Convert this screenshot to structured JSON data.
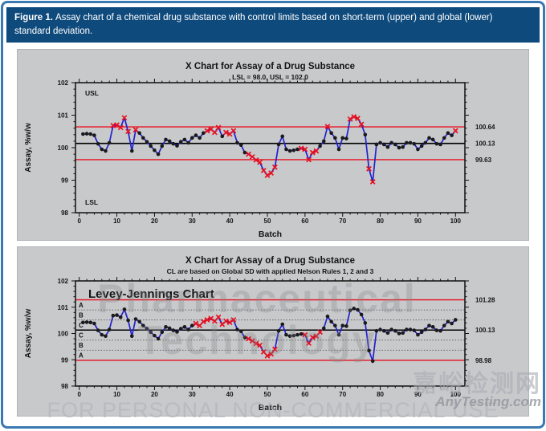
{
  "figure_caption": {
    "label": "Figure 1.",
    "text": "Assay chart of a chemical drug substance with control limits based on short-term (upper) and global (lower) standard deviation."
  },
  "colors": {
    "header_bg": "#0f4a7c",
    "frame_blue": "#3b79b3",
    "panel_bg": "#c8c9cb",
    "line_blue": "#2222cc",
    "point_black": "#1a1a1a",
    "flag_red": "#e8101f",
    "limit_red": "#e8101f",
    "center_black": "#000000"
  },
  "watermarks": {
    "pharma_line1": "Pharmaceutical",
    "pharma_line2": "Technology",
    "footer": "FOR PERSONAL NON-COMMERCIAL USE",
    "site_cn": "嘉峪检测网",
    "site_en": "AnyTesting.com"
  },
  "chart_data": [
    {
      "type": "line",
      "title": "X Chart for Assay of a Drug Substance",
      "subtitle": "LSL = 98.0, USL = 102.0",
      "xlabel": "Batch",
      "ylabel": "Assay, %w/w",
      "xlim": [
        -1,
        102.5
      ],
      "ylim": [
        98,
        102
      ],
      "xticks": [
        0,
        10,
        20,
        30,
        40,
        50,
        60,
        70,
        80,
        90,
        100
      ],
      "yticks": [
        98,
        99,
        100,
        101,
        102
      ],
      "center_line": 100.13,
      "ucl": 100.64,
      "lcl": 99.63,
      "right_labels": [
        "100.64",
        "100.13",
        "99.63"
      ],
      "spec_labels": {
        "upper": "USL",
        "lower": "LSL"
      },
      "batches": [
        1,
        2,
        3,
        4,
        5,
        6,
        7,
        8,
        9,
        10,
        11,
        12,
        13,
        14,
        15,
        16,
        17,
        18,
        19,
        20,
        21,
        22,
        23,
        24,
        25,
        26,
        27,
        28,
        29,
        30,
        31,
        32,
        33,
        34,
        35,
        36,
        37,
        38,
        39,
        40,
        41,
        42,
        43,
        44,
        45,
        46,
        47,
        48,
        49,
        50,
        51,
        52,
        53,
        54,
        55,
        56,
        57,
        58,
        59,
        60,
        61,
        62,
        63,
        64,
        65,
        66,
        67,
        68,
        69,
        70,
        71,
        72,
        73,
        74,
        75,
        76,
        77,
        78,
        79,
        80,
        81,
        82,
        83,
        84,
        85,
        86,
        87,
        88,
        89,
        90,
        91,
        92,
        93,
        94,
        95,
        96,
        97,
        98,
        99,
        100
      ],
      "values": [
        100.42,
        100.43,
        100.42,
        100.38,
        100.12,
        99.95,
        99.9,
        100.15,
        100.68,
        100.7,
        100.62,
        100.92,
        100.5,
        99.9,
        100.55,
        100.45,
        100.3,
        100.18,
        100.05,
        99.92,
        99.8,
        100.05,
        100.25,
        100.2,
        100.12,
        100.06,
        100.18,
        100.25,
        100.15,
        100.3,
        100.38,
        100.3,
        100.45,
        100.52,
        100.57,
        100.47,
        100.62,
        100.35,
        100.47,
        100.42,
        100.52,
        100.15,
        100.08,
        99.85,
        99.8,
        99.72,
        99.62,
        99.55,
        99.3,
        99.15,
        99.22,
        99.4,
        100.1,
        100.35,
        99.95,
        99.9,
        99.92,
        99.95,
        99.98,
        99.95,
        99.63,
        99.85,
        99.9,
        100.05,
        100.2,
        100.65,
        100.45,
        100.3,
        99.95,
        100.3,
        100.28,
        100.88,
        100.95,
        100.9,
        100.72,
        100.4,
        99.35,
        98.95,
        100.1,
        100.15,
        100.1,
        100.02,
        100.15,
        100.1,
        100.0,
        100.02,
        100.15,
        100.15,
        100.12,
        99.95,
        100.05,
        100.15,
        100.3,
        100.25,
        100.12,
        100.1,
        100.3,
        100.45,
        100.38,
        100.52
      ],
      "flagged_batches": [
        9,
        10,
        11,
        12,
        13,
        15,
        34,
        35,
        36,
        37,
        39,
        40,
        41,
        45,
        46,
        47,
        48,
        49,
        50,
        51,
        52,
        59,
        60,
        61,
        62,
        63,
        66,
        72,
        73,
        74,
        75,
        77,
        78,
        100
      ]
    },
    {
      "type": "line",
      "title": "X Chart for Assay of a Drug Substance",
      "subtitle": "CL are based on Global SD with applied Nelson Rules 1, 2 and 3",
      "annotation": "Levey-Jennings Chart",
      "xlabel": "Batch",
      "ylabel": "Assay, %w/w",
      "xlim": [
        -1,
        102.5
      ],
      "ylim": [
        98,
        102
      ],
      "xticks": [
        0,
        10,
        20,
        30,
        40,
        50,
        60,
        70,
        80,
        90,
        100
      ],
      "yticks": [
        98,
        99,
        100,
        101,
        102
      ],
      "center_line": 100.13,
      "ucl": 101.28,
      "lcl": 98.98,
      "zone_lines": [
        100.896,
        100.513,
        99.747,
        99.364
      ],
      "zone_labels": [
        "A",
        "B",
        "C",
        "C",
        "B",
        "A"
      ],
      "right_labels": [
        "101.28",
        "100.13",
        "98.98"
      ],
      "batches": [
        1,
        2,
        3,
        4,
        5,
        6,
        7,
        8,
        9,
        10,
        11,
        12,
        13,
        14,
        15,
        16,
        17,
        18,
        19,
        20,
        21,
        22,
        23,
        24,
        25,
        26,
        27,
        28,
        29,
        30,
        31,
        32,
        33,
        34,
        35,
        36,
        37,
        38,
        39,
        40,
        41,
        42,
        43,
        44,
        45,
        46,
        47,
        48,
        49,
        50,
        51,
        52,
        53,
        54,
        55,
        56,
        57,
        58,
        59,
        60,
        61,
        62,
        63,
        64,
        65,
        66,
        67,
        68,
        69,
        70,
        71,
        72,
        73,
        74,
        75,
        76,
        77,
        78,
        79,
        80,
        81,
        82,
        83,
        84,
        85,
        86,
        87,
        88,
        89,
        90,
        91,
        92,
        93,
        94,
        95,
        96,
        97,
        98,
        99,
        100
      ],
      "values": [
        100.42,
        100.43,
        100.42,
        100.38,
        100.12,
        99.95,
        99.9,
        100.15,
        100.68,
        100.7,
        100.62,
        100.92,
        100.5,
        99.9,
        100.55,
        100.45,
        100.3,
        100.18,
        100.05,
        99.92,
        99.8,
        100.05,
        100.25,
        100.2,
        100.12,
        100.06,
        100.18,
        100.25,
        100.15,
        100.3,
        100.38,
        100.3,
        100.45,
        100.52,
        100.57,
        100.47,
        100.62,
        100.35,
        100.47,
        100.42,
        100.52,
        100.15,
        100.08,
        99.85,
        99.8,
        99.72,
        99.62,
        99.55,
        99.3,
        99.15,
        99.22,
        99.4,
        100.1,
        100.35,
        99.95,
        99.9,
        99.92,
        99.95,
        99.98,
        99.95,
        99.63,
        99.85,
        99.9,
        100.05,
        100.2,
        100.65,
        100.45,
        100.3,
        99.95,
        100.3,
        100.28,
        100.88,
        100.95,
        100.9,
        100.72,
        100.4,
        99.35,
        98.95,
        100.1,
        100.15,
        100.1,
        100.02,
        100.15,
        100.1,
        100.0,
        100.02,
        100.15,
        100.15,
        100.12,
        99.95,
        100.05,
        100.15,
        100.3,
        100.25,
        100.12,
        100.1,
        100.3,
        100.45,
        100.38,
        100.52
      ],
      "flagged_batches": [
        31,
        32,
        33,
        34,
        35,
        36,
        37,
        38,
        39,
        40,
        41,
        45,
        46,
        47,
        48,
        49,
        50,
        51,
        52,
        60,
        61,
        62,
        63,
        64
      ]
    }
  ]
}
